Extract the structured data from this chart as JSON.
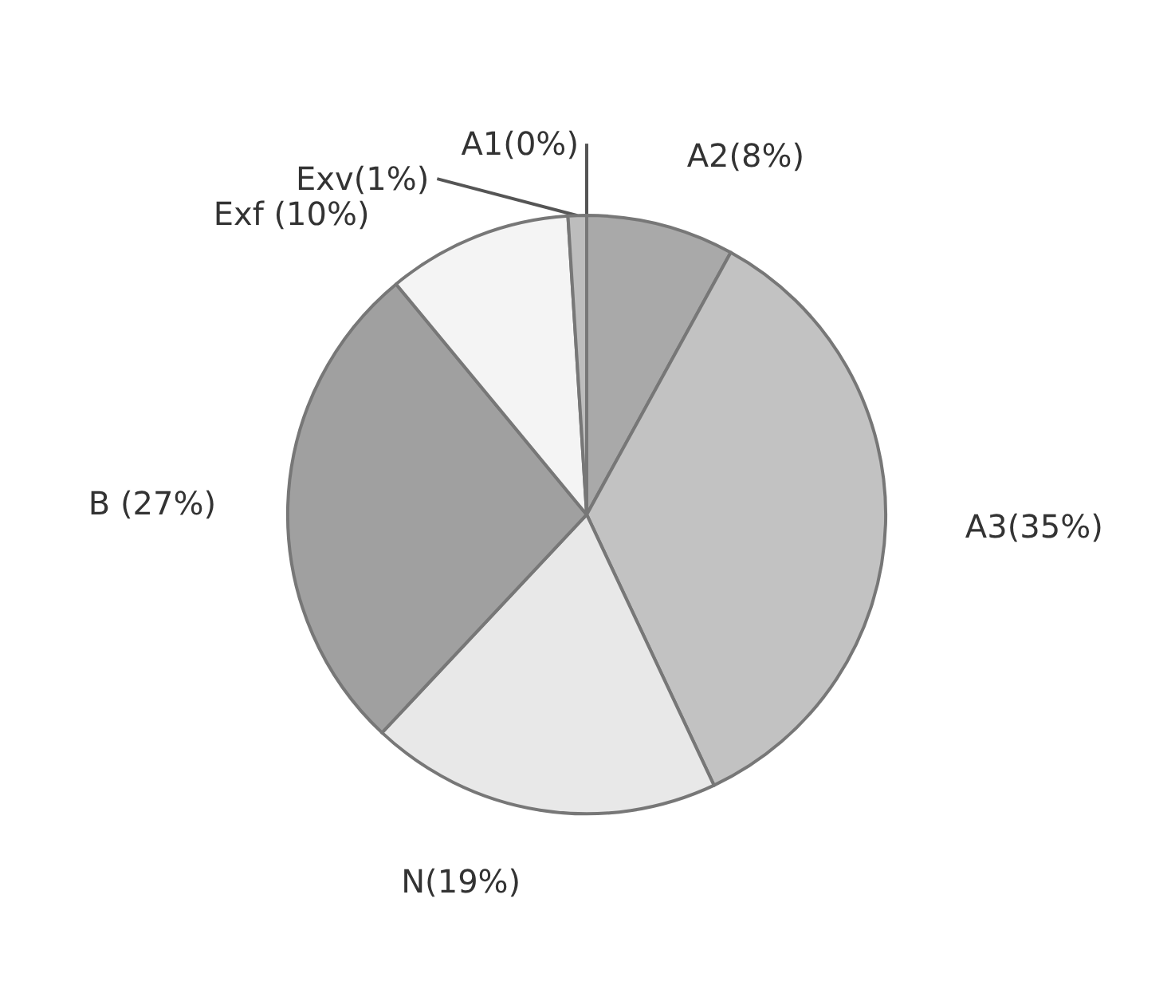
{
  "chart_data": {
    "type": "pie",
    "categories": [
      "A1(0%)",
      "A2(8%)",
      "A3(35%)",
      "N(19%)",
      "B (27%)",
      "Exf (10%)",
      "Exv(1%)"
    ],
    "values": [
      0,
      8,
      35,
      19,
      27,
      10,
      1
    ],
    "colors": [
      "#d8d8d8",
      "#a9a9a9",
      "#c2c2c2",
      "#e8e8e8",
      "#a0a0a0",
      "#f4f4f4",
      "#bdbdbd"
    ]
  }
}
